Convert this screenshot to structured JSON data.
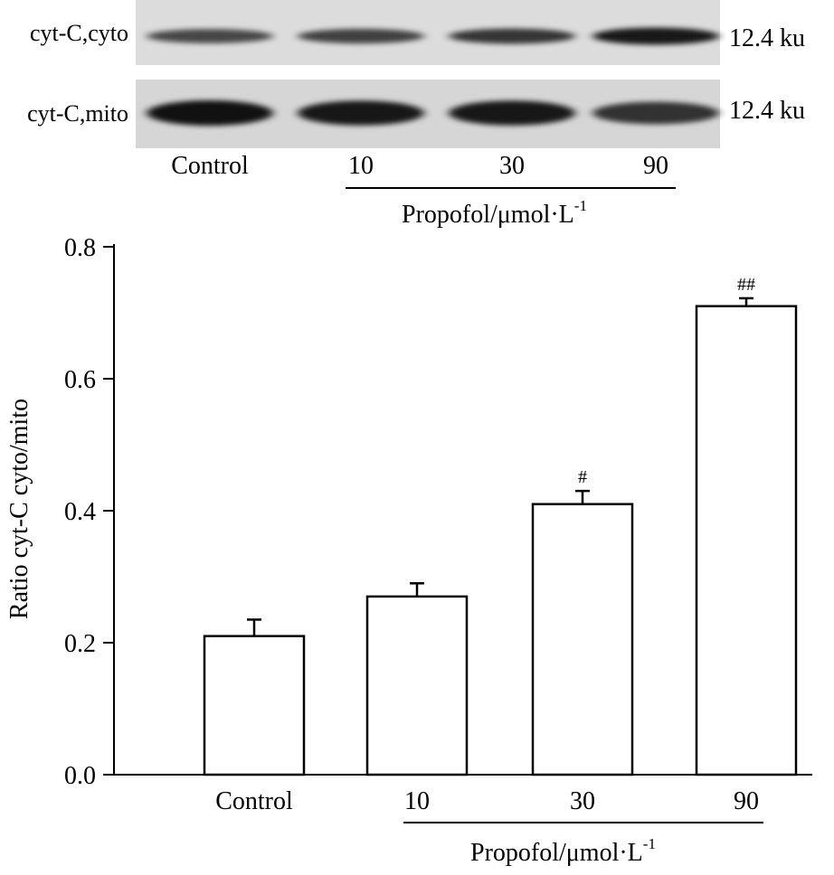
{
  "blot": {
    "row_labels": [
      "cyt-C,cyto",
      "cyt-C,mito"
    ],
    "size_labels": [
      "12.4 ku",
      "12.4 ku"
    ],
    "lanes": [
      "Control",
      "10",
      "30",
      "90"
    ],
    "group_label": "Propofol/μmol·L",
    "group_label_sup": "-1",
    "band_intensity": {
      "cyto": [
        0.55,
        0.6,
        0.68,
        0.9
      ],
      "mito": [
        0.95,
        0.9,
        0.9,
        0.7
      ]
    }
  },
  "chart_data": {
    "type": "bar",
    "categories": [
      "Control",
      "10",
      "30",
      "90"
    ],
    "values": [
      0.21,
      0.27,
      0.41,
      0.71
    ],
    "errors": [
      0.025,
      0.02,
      0.02,
      0.012
    ],
    "annotations": [
      "",
      "",
      "#",
      "##"
    ],
    "ylabel": "Ratio cyt-C cyto/mito",
    "xlabel": "",
    "group_label": "Propofol/μmol·L",
    "group_label_sup": "-1",
    "ylim": [
      0,
      0.8
    ],
    "yticks": [
      "0.0",
      "0.2",
      "0.4",
      "0.6",
      "0.8"
    ],
    "ytick_values": [
      0,
      0.2,
      0.4,
      0.6,
      0.8
    ],
    "bar_fill": "#ffffff",
    "bar_stroke": "#000000",
    "grid": false
  }
}
